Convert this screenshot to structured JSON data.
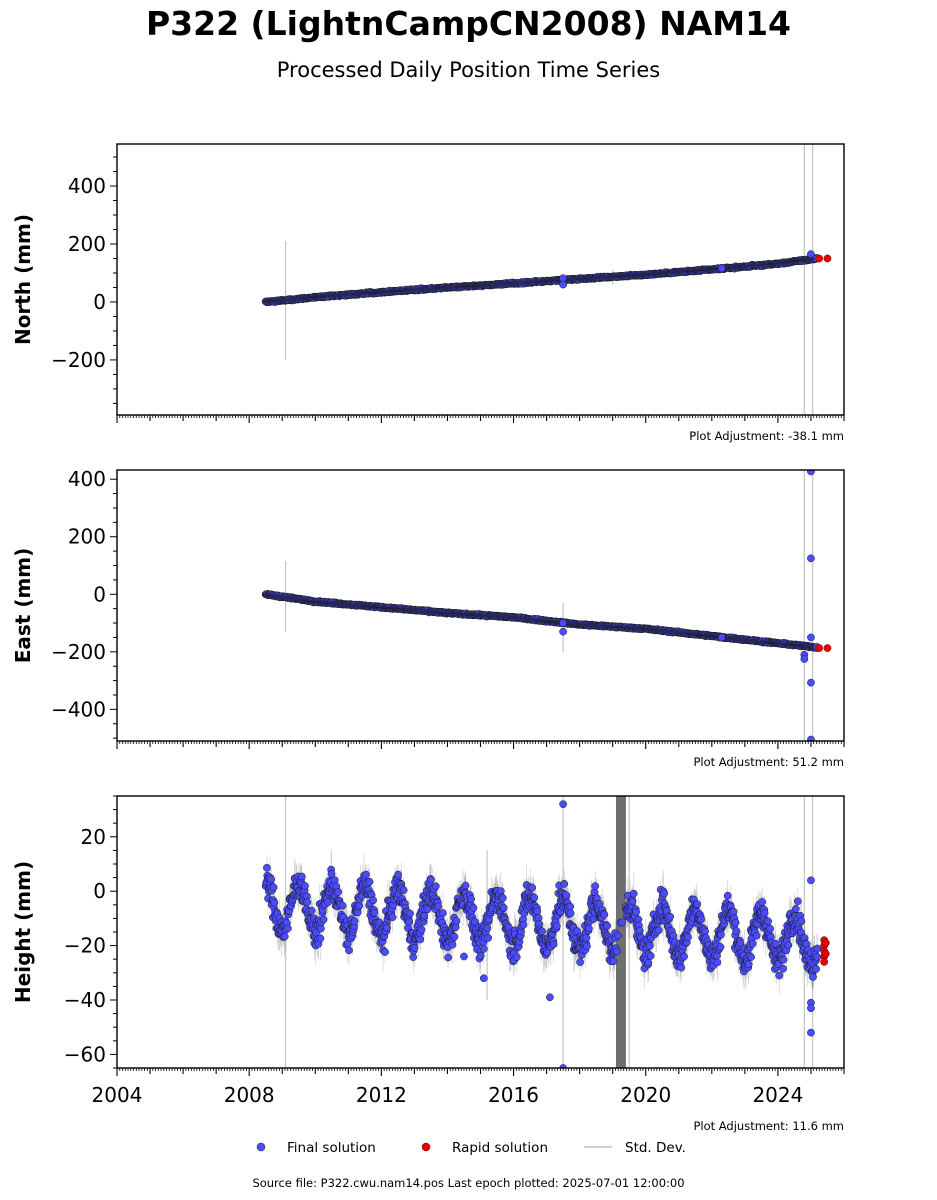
{
  "title": "P322 (LightnCampCN2008) NAM14",
  "subtitle": "Processed Daily Position Time Series",
  "footer": "Source file: P322.cwu.nam14.pos  Last epoch plotted: 2025-07-01 12:00:00",
  "legend": {
    "final": "Final solution",
    "rapid": "Rapid solution",
    "stddev": "Std. Dev."
  },
  "colors": {
    "final": "#4b4bff",
    "rapid": "#e60000",
    "stddev": "#9a9a9a",
    "edge": "#1a1a1a"
  },
  "chart_data": [
    {
      "type": "scatter",
      "ylabel": "North (mm)",
      "adjustment": "Plot Adjustment: -38.1 mm",
      "xlim": [
        2004,
        2026
      ],
      "ylim": [
        -390,
        545
      ],
      "yticks": [
        -200,
        0,
        200,
        400
      ],
      "final_series": [
        [
          2008.5,
          0
        ],
        [
          2010,
          16
        ],
        [
          2012,
          34
        ],
        [
          2014,
          50
        ],
        [
          2016,
          64
        ],
        [
          2018,
          80
        ],
        [
          2020,
          94
        ],
        [
          2022,
          112
        ],
        [
          2024,
          132
        ],
        [
          2025.2,
          150
        ]
      ],
      "rapid_series": [
        [
          2025.25,
          150
        ],
        [
          2025.5,
          150
        ]
      ],
      "outliers": [
        [
          2017.5,
          82
        ],
        [
          2017.5,
          60
        ],
        [
          2022.3,
          116
        ],
        [
          2025.0,
          165
        ]
      ],
      "stddev_bars": [
        [
          2009.1,
          -200,
          210
        ],
        [
          2017.5,
          50,
          90
        ],
        [
          2019.0,
          60,
          110
        ],
        [
          2024.8,
          -390,
          545
        ],
        [
          2025.05,
          -390,
          545
        ]
      ]
    },
    {
      "type": "scatter",
      "ylabel": "East (mm)",
      "adjustment": "Plot Adjustment: 51.2 mm",
      "xlim": [
        2004,
        2026
      ],
      "ylim": [
        -510,
        432
      ],
      "yticks": [
        -400,
        -200,
        0,
        200,
        400
      ],
      "final_series": [
        [
          2008.5,
          0
        ],
        [
          2010,
          -25
        ],
        [
          2012,
          -45
        ],
        [
          2014,
          -65
        ],
        [
          2016,
          -80
        ],
        [
          2018,
          -105
        ],
        [
          2020,
          -120
        ],
        [
          2022,
          -145
        ],
        [
          2024,
          -170
        ],
        [
          2025.2,
          -185
        ]
      ],
      "rapid_series": [
        [
          2025.25,
          -187
        ],
        [
          2025.5,
          -187
        ]
      ],
      "outliers": [
        [
          2017.5,
          -130
        ],
        [
          2017.5,
          -100
        ],
        [
          2022.3,
          -150
        ],
        [
          2024.8,
          -210
        ],
        [
          2024.8,
          -225
        ],
        [
          2025.0,
          427
        ],
        [
          2025.0,
          125
        ],
        [
          2025.0,
          -307
        ],
        [
          2025.0,
          -505
        ],
        [
          2025.0,
          -150
        ]
      ],
      "stddev_bars": [
        [
          2009.1,
          -130,
          115
        ],
        [
          2017.5,
          -200,
          -30
        ],
        [
          2024.8,
          -510,
          432
        ],
        [
          2025.05,
          -510,
          432
        ]
      ]
    },
    {
      "type": "scatter",
      "ylabel": "Height (mm)",
      "adjustment": "Plot Adjustment: 11.6 mm",
      "xlim": [
        2004,
        2026
      ],
      "ylim": [
        -65,
        35
      ],
      "yticks": [
        -60,
        -40,
        -20,
        0,
        20
      ],
      "xticks": [
        2004,
        2008,
        2012,
        2016,
        2020,
        2024
      ],
      "seasonal": {
        "mean_start": -5,
        "mean_end": -18,
        "amplitude": 9,
        "noise": 4
      },
      "rapid_series": [
        [
          2025.4,
          -18
        ],
        [
          2025.4,
          -20
        ],
        [
          2025.4,
          -22
        ],
        [
          2025.4,
          -24
        ],
        [
          2025.4,
          -26
        ],
        [
          2025.45,
          -19
        ],
        [
          2025.45,
          -23
        ]
      ],
      "outliers": [
        [
          2017.5,
          32
        ],
        [
          2017.5,
          -65
        ],
        [
          2015.1,
          -32
        ],
        [
          2014.5,
          -24
        ],
        [
          2025.0,
          4
        ],
        [
          2025.0,
          -41
        ],
        [
          2025.0,
          -43
        ],
        [
          2025.0,
          -52
        ],
        [
          2017.1,
          -39
        ]
      ],
      "stddev_bars": [
        [
          2009.1,
          -65,
          35
        ],
        [
          2015.2,
          -40,
          15
        ],
        [
          2017.5,
          -65,
          35
        ],
        [
          2024.8,
          -65,
          35
        ],
        [
          2025.05,
          -65,
          35
        ],
        [
          2019.5,
          -65,
          35
        ]
      ],
      "dense_band": [
        2019.1,
        2019.4
      ]
    }
  ]
}
